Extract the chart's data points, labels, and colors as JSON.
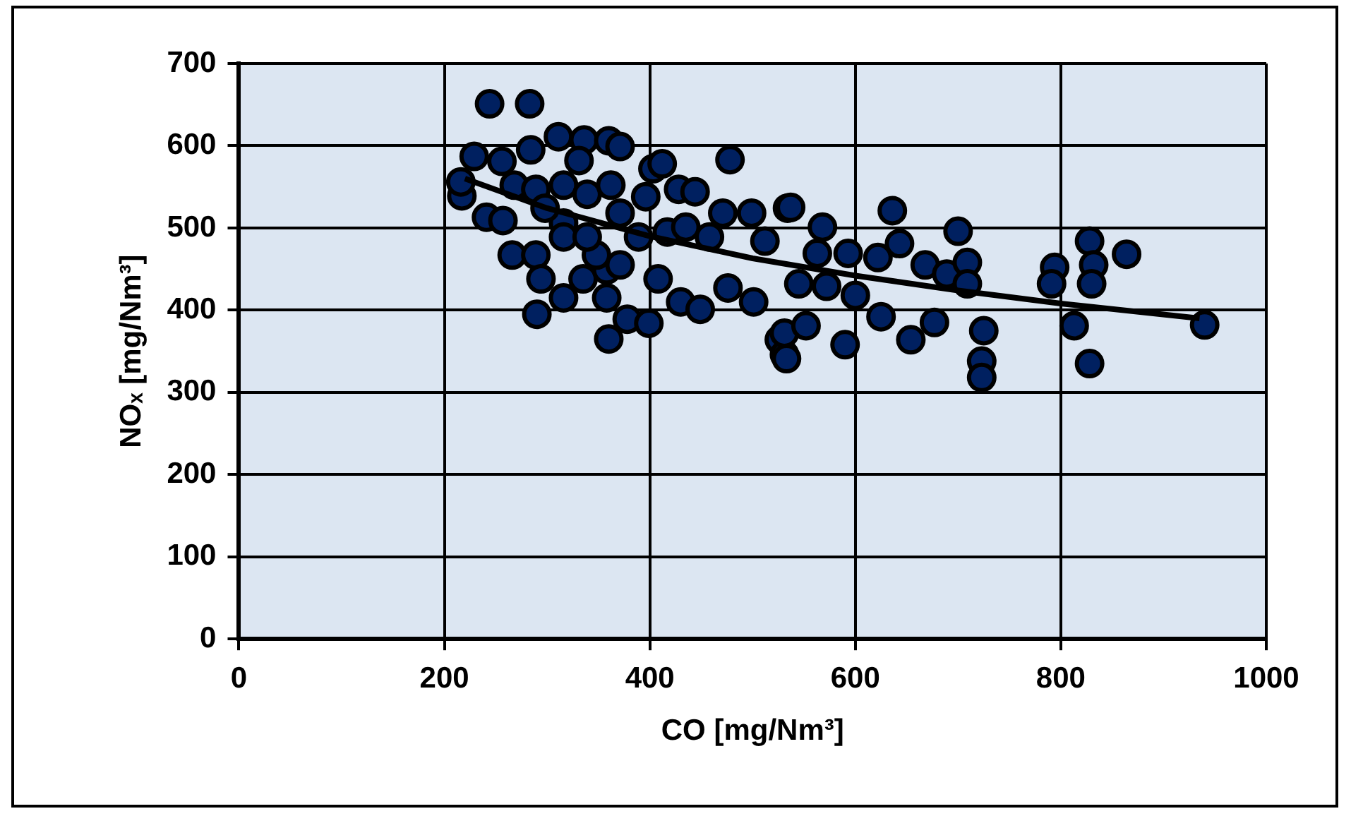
{
  "chart_data": {
    "type": "scatter",
    "xlabel": "CO [mg/Nm³]",
    "ylabel": "NOₓ [mg/Nm³]",
    "xlim": [
      0,
      1000
    ],
    "xticks": [
      0,
      200,
      400,
      600,
      800,
      1000
    ],
    "ylim": [
      0,
      700
    ],
    "yticks": [
      0,
      100,
      200,
      300,
      400,
      500,
      600,
      700
    ],
    "grid": true,
    "legend": false,
    "marker": "circle",
    "series": [
      {
        "color": "#002060",
        "x": [
          244,
          283,
          229,
          256,
          284,
          311,
          336,
          360,
          371,
          331,
          217,
          216,
          241,
          257,
          268,
          289,
          316,
          339,
          362,
          371,
          316,
          298,
          266,
          289,
          294,
          290,
          316,
          335,
          358,
          358,
          360,
          378,
          399,
          403,
          412,
          396,
          428,
          444,
          478,
          389,
          417,
          435,
          458,
          471,
          499,
          512,
          408,
          430,
          449,
          476,
          501,
          526,
          531,
          534,
          348,
          371,
          316,
          339,
          537,
          568,
          531,
          533,
          552,
          545,
          563,
          572,
          590,
          593,
          600,
          622,
          625,
          636,
          643,
          654,
          668,
          677,
          689,
          700,
          709,
          709,
          725,
          723,
          723,
          794,
          791,
          813,
          828,
          832,
          830,
          828,
          864,
          940
        ],
        "values": [
          651,
          651,
          587,
          581,
          595,
          611,
          607,
          606,
          599,
          582,
          539,
          556,
          513,
          509,
          552,
          547,
          552,
          541,
          552,
          518,
          506,
          524,
          467,
          467,
          438,
          395,
          415,
          438,
          449,
          415,
          365,
          389,
          384,
          572,
          578,
          538,
          547,
          544,
          583,
          489,
          495,
          501,
          489,
          518,
          518,
          484,
          438,
          410,
          401,
          427,
          410,
          364,
          346,
          524,
          467,
          455,
          489,
          489,
          525,
          501,
          372,
          341,
          381,
          432,
          469,
          429,
          358,
          469,
          418,
          464,
          392,
          521,
          481,
          364,
          455,
          385,
          444,
          496,
          458,
          432,
          375,
          338,
          318,
          452,
          432,
          381,
          484,
          455,
          432,
          335,
          468,
          382
        ]
      },
      {
        "type": "line",
        "color": "#000000",
        "marker": "none",
        "x": [
          220,
          300,
          400,
          500,
          600,
          700,
          800,
          935
        ],
        "values": [
          560,
          524,
          490,
          463,
          442,
          424,
          408,
          390
        ]
      }
    ]
  }
}
